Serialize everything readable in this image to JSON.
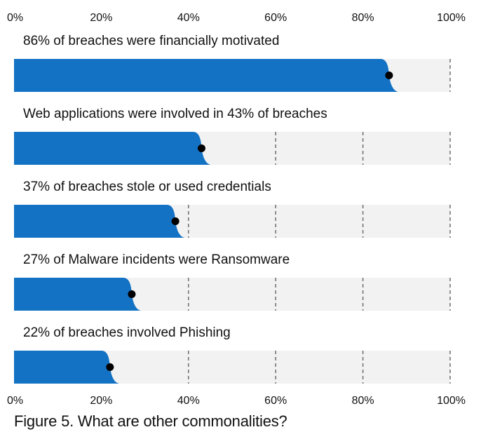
{
  "caption": "Figure 5. What are other commonalities?",
  "colors": {
    "bar": "#1372c4",
    "track": "#f2f2f2",
    "gridline": "#6e6e6e",
    "dot": "#000000",
    "text": "#111111"
  },
  "chart_data": {
    "type": "bar",
    "orientation": "horizontal",
    "x_axis": {
      "min": 0,
      "max": 100,
      "ticks": [
        0,
        20,
        40,
        60,
        80,
        100
      ],
      "tick_labels": [
        "0%",
        "20%",
        "40%",
        "60%",
        "80%",
        "100%"
      ],
      "position": "top and bottom"
    },
    "grid": true,
    "bars": [
      {
        "label": "86% of breaches were financially motivated",
        "value": 86
      },
      {
        "label": "Web applications were involved in 43% of breaches",
        "value": 43
      },
      {
        "label": "37% of breaches stole or used credentials",
        "value": 37
      },
      {
        "label": "27% of Malware incidents were Ransomware",
        "value": 27
      },
      {
        "label": "22% of breaches involved Phishing",
        "value": 22
      }
    ]
  }
}
